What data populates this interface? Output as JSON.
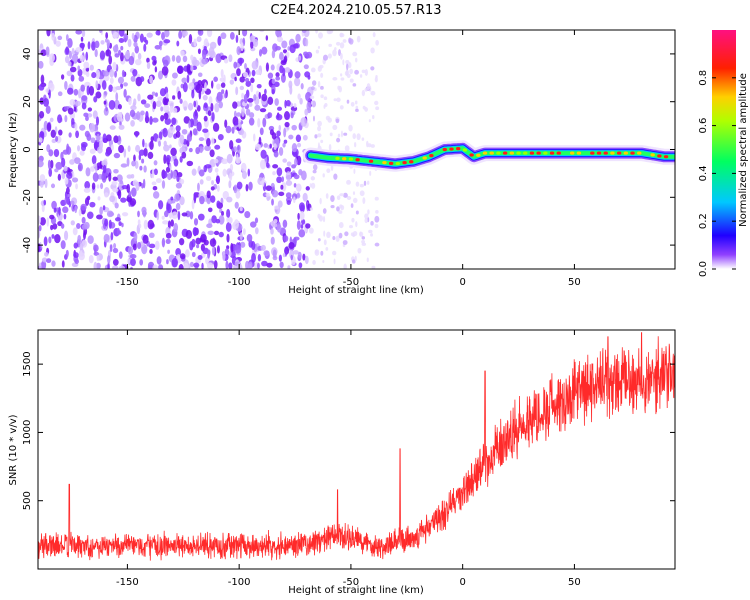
{
  "figure_title": "C2E4.2024.210.05.57.R13",
  "chart_data": [
    {
      "type": "heatmap",
      "xlabel": "Height of straight line (km)",
      "ylabel": "Frequency (Hz)",
      "xlim": [
        -190,
        95
      ],
      "ylim": [
        -50,
        50
      ],
      "xticks": [
        -150,
        -100,
        -50,
        0,
        50
      ],
      "yticks": [
        -40,
        -20,
        0,
        20,
        40
      ],
      "noise_region": {
        "x": [
          -190,
          -68
        ],
        "y": [
          -50,
          50
        ]
      },
      "sparse_region": {
        "x": [
          -68,
          -38
        ],
        "y": [
          -50,
          50
        ]
      },
      "ridge": {
        "x": [
          -68,
          -60,
          -50,
          -40,
          -30,
          -22,
          -15,
          -8,
          0,
          5,
          10,
          20,
          30,
          40,
          50,
          60,
          70,
          80,
          90,
          95
        ],
        "y": [
          -2.5,
          -3.5,
          -4,
          -5,
          -6,
          -5,
          -3,
          0,
          0.5,
          -3,
          -1.5,
          -1.5,
          -1.5,
          -1.5,
          -1.5,
          -1.5,
          -1.5,
          -1.5,
          -3,
          -3
        ]
      },
      "colorbar": {
        "label": "Normalized spectral amplitude",
        "range": [
          0,
          1
        ],
        "ticks": [
          0.0,
          0.2,
          0.4,
          0.6,
          0.8
        ],
        "colors": [
          "#ffffff",
          "#8000ff",
          "#0000ff",
          "#00e0ff",
          "#00ff40",
          "#ffff00",
          "#ff8000",
          "#ff0000",
          "#ff0080"
        ]
      }
    },
    {
      "type": "line",
      "xlabel": "Height of straight line (km)",
      "ylabel": "SNR (10 * v/v)",
      "xlim": [
        -190,
        95
      ],
      "ylim": [
        0,
        1750
      ],
      "xticks": [
        -150,
        -100,
        -50,
        0,
        50
      ],
      "yticks": [
        500,
        1000,
        1500
      ],
      "line_color": "#ff2a2a",
      "trend": {
        "x": [
          -190,
          -150,
          -100,
          -70,
          -55,
          -45,
          -35,
          -20,
          -10,
          0,
          10,
          20,
          30,
          40,
          50,
          60,
          70,
          80,
          95
        ],
        "y": [
          170,
          170,
          170,
          180,
          240,
          200,
          160,
          250,
          380,
          560,
          760,
          960,
          1100,
          1200,
          1280,
          1330,
          1360,
          1390,
          1420
        ]
      },
      "spikes": [
        {
          "x": -176,
          "y": 620
        },
        {
          "x": -56,
          "y": 580
        },
        {
          "x": -28,
          "y": 880
        },
        {
          "x": 10,
          "y": 1450
        },
        {
          "x": 65,
          "y": 1700
        },
        {
          "x": 80,
          "y": 1730
        }
      ]
    }
  ]
}
